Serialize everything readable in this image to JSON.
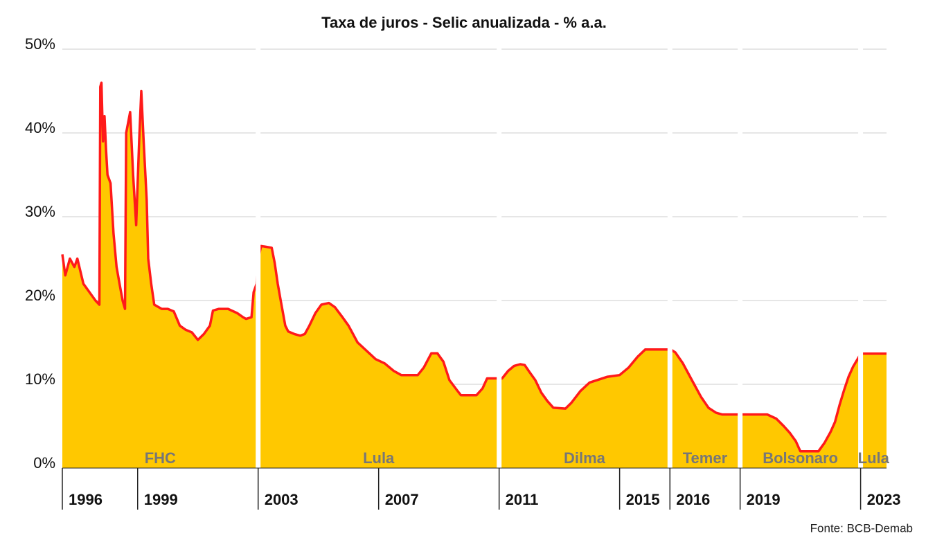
{
  "chart_data": {
    "type": "area",
    "title": "Taxa de juros - Selic anualizada - % a.a.",
    "source": "Fonte: BCB-Demab",
    "fill_color": "#ffc800",
    "line_color": "#ff1a1a",
    "grid": true,
    "xlim": [
      1996.5,
      2023.86
    ],
    "ylim": [
      0,
      50
    ],
    "yticks": [
      {
        "value": 0,
        "label": "0%"
      },
      {
        "value": 10,
        "label": "10%"
      },
      {
        "value": 20,
        "label": "20%"
      },
      {
        "value": 30,
        "label": "30%"
      },
      {
        "value": 40,
        "label": "40%"
      },
      {
        "value": 50,
        "label": "50%"
      }
    ],
    "xticks": [
      {
        "value": 1996.5,
        "label": "1996"
      },
      {
        "value": 1999,
        "label": "1999"
      },
      {
        "value": 2003,
        "label": "2003"
      },
      {
        "value": 2007,
        "label": "2007"
      },
      {
        "value": 2011,
        "label": "2011"
      },
      {
        "value": 2015,
        "label": "2015"
      },
      {
        "value": 2016.67,
        "label": "2016"
      },
      {
        "value": 2019,
        "label": "2019"
      },
      {
        "value": 2023,
        "label": "2023"
      }
    ],
    "periods": [
      {
        "name": "FHC",
        "start": 1996.5,
        "end": 2003
      },
      {
        "name": "Lula",
        "start": 2003,
        "end": 2011
      },
      {
        "name": "Dilma",
        "start": 2011,
        "end": 2016.67
      },
      {
        "name": "Temer",
        "start": 2016.67,
        "end": 2019
      },
      {
        "name": "Bolsonaro",
        "start": 2019,
        "end": 2023
      },
      {
        "name": "Lula",
        "start": 2023,
        "end": 2023.86
      }
    ],
    "x": [
      1996.5,
      1996.6,
      1996.75,
      1996.9,
      1997.0,
      1997.2,
      1997.4,
      1997.6,
      1997.73,
      1997.76,
      1997.8,
      1997.85,
      1997.9,
      1997.95,
      1998.0,
      1998.1,
      1998.2,
      1998.3,
      1998.4,
      1998.5,
      1998.58,
      1998.62,
      1998.75,
      1998.85,
      1998.95,
      1999.05,
      1999.12,
      1999.2,
      1999.3,
      1999.35,
      1999.45,
      1999.55,
      1999.8,
      2000.0,
      2000.2,
      2000.4,
      2000.6,
      2000.8,
      2001.0,
      2001.2,
      2001.4,
      2001.5,
      2001.7,
      2002.0,
      2002.3,
      2002.5,
      2002.6,
      2002.78,
      2002.85,
      2002.95,
      2003.0,
      2003.1,
      2003.45,
      2003.55,
      2003.65,
      2003.75,
      2003.9,
      2004.0,
      2004.2,
      2004.4,
      2004.55,
      2004.7,
      2004.9,
      2005.1,
      2005.35,
      2005.55,
      2005.8,
      2006.0,
      2006.3,
      2006.6,
      2006.9,
      2007.2,
      2007.5,
      2007.75,
      2008.3,
      2008.5,
      2008.75,
      2008.95,
      2009.15,
      2009.35,
      2009.6,
      2009.73,
      2010.25,
      2010.45,
      2010.6,
      2010.73,
      2011.1,
      2011.3,
      2011.5,
      2011.7,
      2011.85,
      2012.0,
      2012.2,
      2012.4,
      2012.6,
      2012.8,
      2013.2,
      2013.4,
      2013.7,
      2014.0,
      2014.6,
      2015.0,
      2015.3,
      2015.6,
      2015.85,
      2016.7,
      2016.85,
      2017.1,
      2017.4,
      2017.7,
      2017.95,
      2018.2,
      2018.4,
      2019.9,
      2020.2,
      2020.45,
      2020.65,
      2020.85,
      2021.0,
      2021.6,
      2021.8,
      2022.0,
      2022.15,
      2022.3,
      2022.45,
      2022.6,
      2022.75,
      2022.9,
      2023.0,
      2023.86
    ],
    "values": [
      25.5,
      23,
      25,
      24,
      25,
      22,
      21,
      20,
      19.5,
      45.5,
      46,
      39,
      42,
      38,
      35,
      34,
      28,
      24,
      22,
      20,
      19,
      40,
      42.5,
      35,
      29,
      39,
      45,
      39,
      32,
      25,
      22,
      19.5,
      19,
      19,
      18.7,
      17,
      16.5,
      16.2,
      15.3,
      16,
      17,
      18.8,
      19,
      19,
      18.5,
      18,
      17.8,
      18,
      21,
      22,
      25,
      26.5,
      26.3,
      24.5,
      22,
      20,
      17,
      16.3,
      16,
      15.8,
      16,
      17,
      18.5,
      19.5,
      19.7,
      19.2,
      18,
      17,
      15,
      14,
      13,
      12.5,
      11.6,
      11.1,
      11.1,
      12,
      13.7,
      13.7,
      12.7,
      10.5,
      9.3,
      8.7,
      8.7,
      9.5,
      10.7,
      10.7,
      10.7,
      11.6,
      12.2,
      12.4,
      12.3,
      11.5,
      10.5,
      9,
      8,
      7.2,
      7.1,
      7.8,
      9.2,
      10.2,
      10.9,
      11.1,
      12,
      13.3,
      14.15,
      14.15,
      13.8,
      12.5,
      10.5,
      8.5,
      7.2,
      6.6,
      6.4,
      6.4,
      5.9,
      5,
      4.2,
      3.2,
      2,
      2,
      3,
      4.3,
      5.5,
      7.5,
      9.3,
      10.9,
      12.1,
      13,
      13.65,
      13.65
    ]
  }
}
